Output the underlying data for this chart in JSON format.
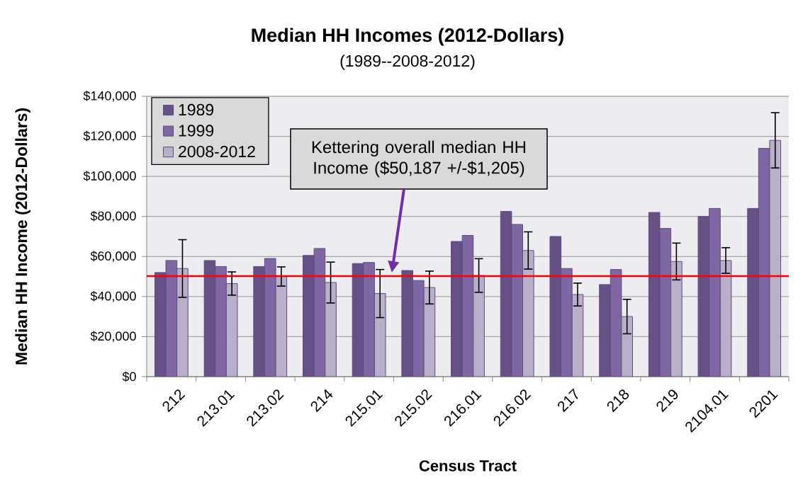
{
  "chart_data": {
    "type": "bar",
    "title": "Median HH Incomes (2012-Dollars)",
    "subtitle": "(1989--2008-2012)",
    "xlabel": "Census Tract",
    "ylabel": "Median HH Income (2012-Dollars)",
    "categories": [
      "212",
      "213.01",
      "213.02",
      "214",
      "215.01",
      "215.02",
      "216.01",
      "216.02",
      "217",
      "218",
      "219",
      "2104.01",
      "2201"
    ],
    "series": [
      {
        "name": "1989",
        "color": "#665085",
        "values": [
          52000,
          58000,
          55000,
          60500,
          56500,
          53000,
          67500,
          82500,
          70000,
          46000,
          82000,
          80000,
          84000
        ]
      },
      {
        "name": "1999",
        "color": "#8066a2",
        "values": [
          58000,
          55000,
          59000,
          64000,
          57000,
          48000,
          70500,
          76000,
          54000,
          53500,
          74000,
          84000,
          114000
        ]
      },
      {
        "name": "2008-2012",
        "color": "#b9afcb",
        "values": [
          54000,
          46500,
          50000,
          47000,
          41500,
          44500,
          50500,
          63000,
          41000,
          30000,
          57500,
          58000,
          118000
        ],
        "errors": [
          14400,
          5800,
          4800,
          10200,
          12000,
          8200,
          8400,
          9300,
          5700,
          8600,
          9200,
          6400,
          13800
        ]
      }
    ],
    "ylim": [
      0,
      140000
    ],
    "yticks": [
      {
        "value": 0,
        "label": "$0"
      },
      {
        "value": 20000,
        "label": "$20,000"
      },
      {
        "value": 40000,
        "label": "$40,000"
      },
      {
        "value": 60000,
        "label": "$60,000"
      },
      {
        "value": 80000,
        "label": "$80,000"
      },
      {
        "value": 100000,
        "label": "$100,000"
      },
      {
        "value": 120000,
        "label": "$120,000"
      },
      {
        "value": 140000,
        "label": "$140,000"
      }
    ],
    "grid": "y",
    "legend": "top left",
    "ref_lines": [
      {
        "axis": "y",
        "value": 50187,
        "color": "#ff0000"
      }
    ],
    "annotations": [
      "Kettering overall median HH Income ($50,187 +/-$1,205)"
    ]
  }
}
